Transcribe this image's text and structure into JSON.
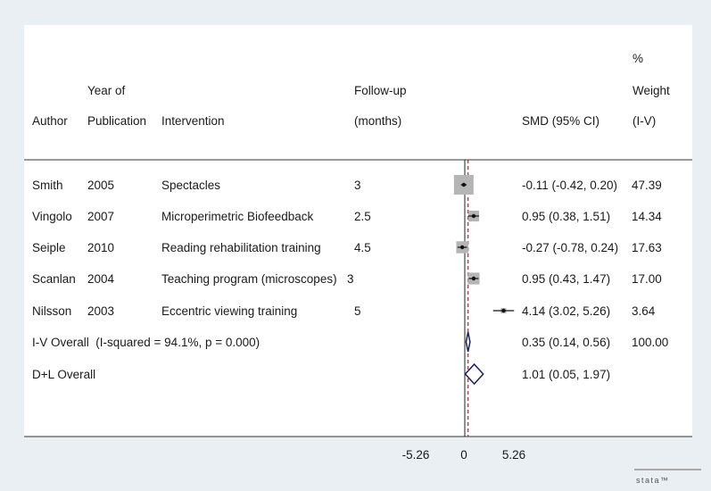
{
  "header": {
    "author": "Author",
    "year_line1": "Year of",
    "year_line2": "Publication",
    "intervention": "Intervention",
    "followup_line1": "Follow-up",
    "followup_line2": "(months)",
    "smd": "SMD (95% CI)",
    "weight_line1": "%",
    "weight_line2": "Weight",
    "weight_line3": "(I-V)"
  },
  "axis": {
    "ticks": [
      {
        "value": -5.26,
        "label": "-5.26"
      },
      {
        "value": 0,
        "label": "0"
      },
      {
        "value": 5.26,
        "label": "5.26"
      }
    ]
  },
  "logo": "stata™",
  "colors": {
    "page_bg": "#e9eff3",
    "plot_bg": "#ffffff",
    "box": "#b5b5b5",
    "diamond": "#1b1f5e",
    "overall_line": "#b3394a"
  },
  "chart_data": {
    "type": "forest",
    "x_range": [
      -5.26,
      5.26
    ],
    "null_value": 0,
    "overall_line_value": 0.35,
    "studies": [
      {
        "author": "Smith",
        "year": "2005",
        "intervention": "Spectacles",
        "followup": "3",
        "ci_text": "-0.11 (-0.42, 0.20)",
        "weight_text": "47.39",
        "smd": -0.11,
        "lower": -0.42,
        "upper": 0.2,
        "weight": 47.39
      },
      {
        "author": "Vingolo",
        "year": "2007",
        "intervention": "Microperimetric Biofeedback",
        "followup": "2.5",
        "ci_text": "0.95 (0.38, 1.51)",
        "weight_text": "14.34",
        "smd": 0.95,
        "lower": 0.38,
        "upper": 1.51,
        "weight": 14.34
      },
      {
        "author": "Seiple",
        "year": "2010",
        "intervention": "Reading rehabilitation training",
        "followup": "4.5",
        "ci_text": "-0.27 (-0.78, 0.24)",
        "weight_text": "17.63",
        "smd": -0.27,
        "lower": -0.78,
        "upper": 0.24,
        "weight": 17.63
      },
      {
        "author": "Scanlan",
        "year": "2004",
        "intervention": "Teaching program (microscopes)",
        "followup": "3",
        "ci_text": "0.95 (0.43, 1.47)",
        "weight_text": "17.00",
        "smd": 0.95,
        "lower": 0.43,
        "upper": 1.47,
        "weight": 17.0
      },
      {
        "author": "Nilsson",
        "year": "2003",
        "intervention": "Eccentric viewing training",
        "followup": "5",
        "ci_text": "4.14 (3.02, 5.26)",
        "weight_text": "3.64",
        "smd": 4.14,
        "lower": 3.02,
        "upper": 5.26,
        "weight": 3.64
      }
    ],
    "overall": [
      {
        "label": "I-V Overall  (I-squared = 94.1%, p = 0.000)",
        "ci_text": "0.35 (0.14, 0.56)",
        "weight_text": "100.00",
        "smd": 0.35,
        "lower": 0.14,
        "upper": 0.56
      },
      {
        "label": "D+L Overall",
        "ci_text": "1.01 (0.05, 1.97)",
        "weight_text": "",
        "smd": 1.01,
        "lower": 0.05,
        "upper": 1.97
      }
    ]
  }
}
